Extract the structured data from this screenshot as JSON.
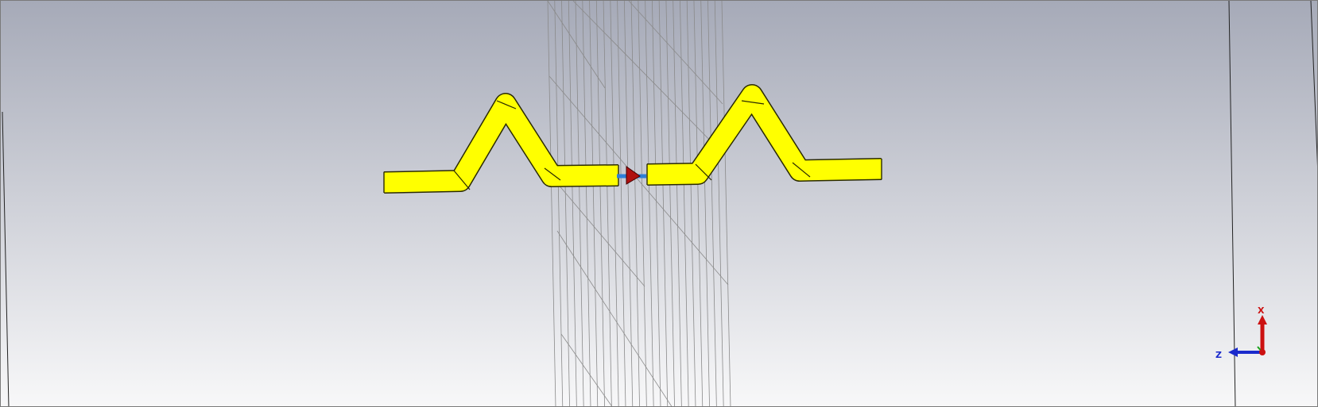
{
  "viewport": {
    "background_top": "#a6aab8",
    "background_bottom": "#f8f8f9"
  },
  "model": {
    "wire_color": "#ffff00",
    "wire_outline": "#2a2a00",
    "port_color": "#b01010",
    "feed_color": "#2f7fd8",
    "mesh_color": "#8a8a8a"
  },
  "axes": {
    "x_label": "X",
    "z_label": "Z",
    "x_color": "#cc1111",
    "z_color": "#1a2acc",
    "y_color": "#18a018"
  }
}
